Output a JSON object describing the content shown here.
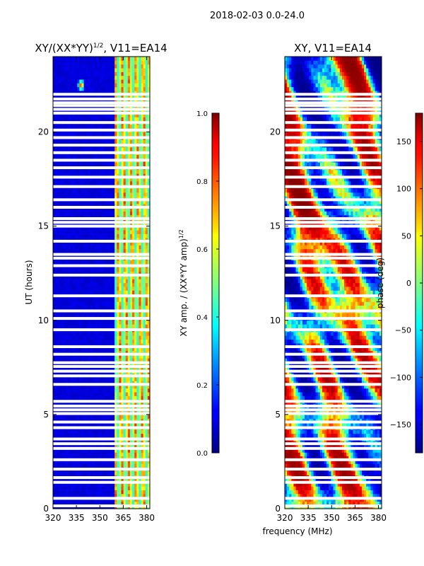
{
  "figure": {
    "suptitle": "2018-02-03 0.0-24.0",
    "xlabel": "frequency (MHz)"
  },
  "chart_data": [
    {
      "type": "heatmap",
      "title_main": "XY/(XX*YY)",
      "title_exp": "1/2",
      "title_tail": ", V11=EA14",
      "xlabel": "",
      "ylabel": "UT (hours)",
      "xlim": [
        320,
        382
      ],
      "ylim": [
        0,
        24
      ],
      "xticks": [
        320,
        335,
        350,
        365,
        380
      ],
      "yticks": [
        0,
        5,
        10,
        15,
        20
      ],
      "colormap": "jet",
      "colorbar": {
        "label_main": "XY amp. / (XX*YY amp)",
        "label_exp": "1/2",
        "range": [
          0.0,
          1.0
        ],
        "ticks": [
          "0.0",
          "0.2",
          "0.4",
          "0.6",
          "0.8",
          "1.0"
        ],
        "tick_values": [
          0.0,
          0.2,
          0.4,
          0.6,
          0.8,
          1.0
        ]
      },
      "features": [
        {
          "note": "high-coherence band",
          "freq_range_mhz": [
            360,
            382
          ],
          "value_range": [
            0.4,
            0.9
          ]
        },
        {
          "note": "bright spot",
          "freq_mhz": 338,
          "ut_hours": 22.5,
          "value": 0.8
        }
      ]
    },
    {
      "type": "heatmap",
      "title": "XY, V11=EA14",
      "xlabel": "",
      "ylabel": "",
      "xlim": [
        320,
        382
      ],
      "ylim": [
        0,
        24
      ],
      "xticks": [
        320,
        335,
        350,
        365,
        380
      ],
      "yticks": [
        0,
        5,
        10,
        15,
        20
      ],
      "colormap": "jet",
      "colorbar": {
        "label": "phase (deg)",
        "range": [
          -180,
          180
        ],
        "ticks": [
          "150",
          "100",
          "50",
          "0",
          "−50",
          "−100",
          "−150"
        ],
        "tick_values": [
          150,
          100,
          50,
          0,
          -50,
          -100,
          -150
        ]
      }
    }
  ],
  "flagged_ut_hours": [
    0.15,
    0.55,
    1.4,
    1.65,
    2.1,
    2.6,
    3.2,
    3.45,
    3.7,
    4.3,
    4.6,
    5.05,
    5.25,
    5.45,
    5.7,
    6.6,
    7.05,
    7.3,
    7.55,
    7.75,
    8.2,
    8.6,
    9.5,
    10.1,
    10.5,
    11.3,
    12.4,
    12.9,
    13.3,
    13.5,
    14.2,
    15.0,
    15.2,
    15.4,
    16.0,
    16.4,
    17.1,
    17.6,
    18.1,
    18.5,
    18.9,
    19.3,
    19.7,
    20.1,
    20.5,
    21.0,
    21.2,
    21.4,
    21.55,
    21.75,
    22.0
  ]
}
